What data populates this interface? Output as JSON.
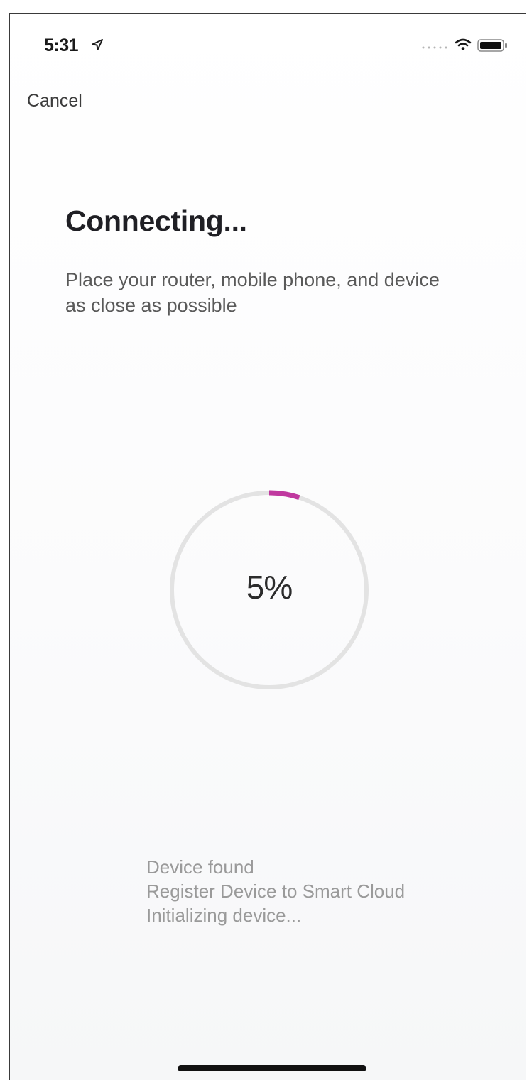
{
  "status_bar": {
    "time": "5:31",
    "location_icon": "location-arrow-icon",
    "signal_icon": "cellular-signal-icon",
    "wifi_icon": "wifi-icon",
    "battery_icon": "battery-icon"
  },
  "nav": {
    "cancel_label": "Cancel"
  },
  "header": {
    "title": "Connecting...",
    "instructions": "Place your router, mobile phone, and device as close as possible"
  },
  "progress": {
    "value": 5,
    "label": "5%",
    "track_color": "#e3e3e3",
    "fill_color": "#c0399f"
  },
  "steps": [
    "Device found",
    "Register Device to Smart Cloud",
    "Initializing device..."
  ]
}
